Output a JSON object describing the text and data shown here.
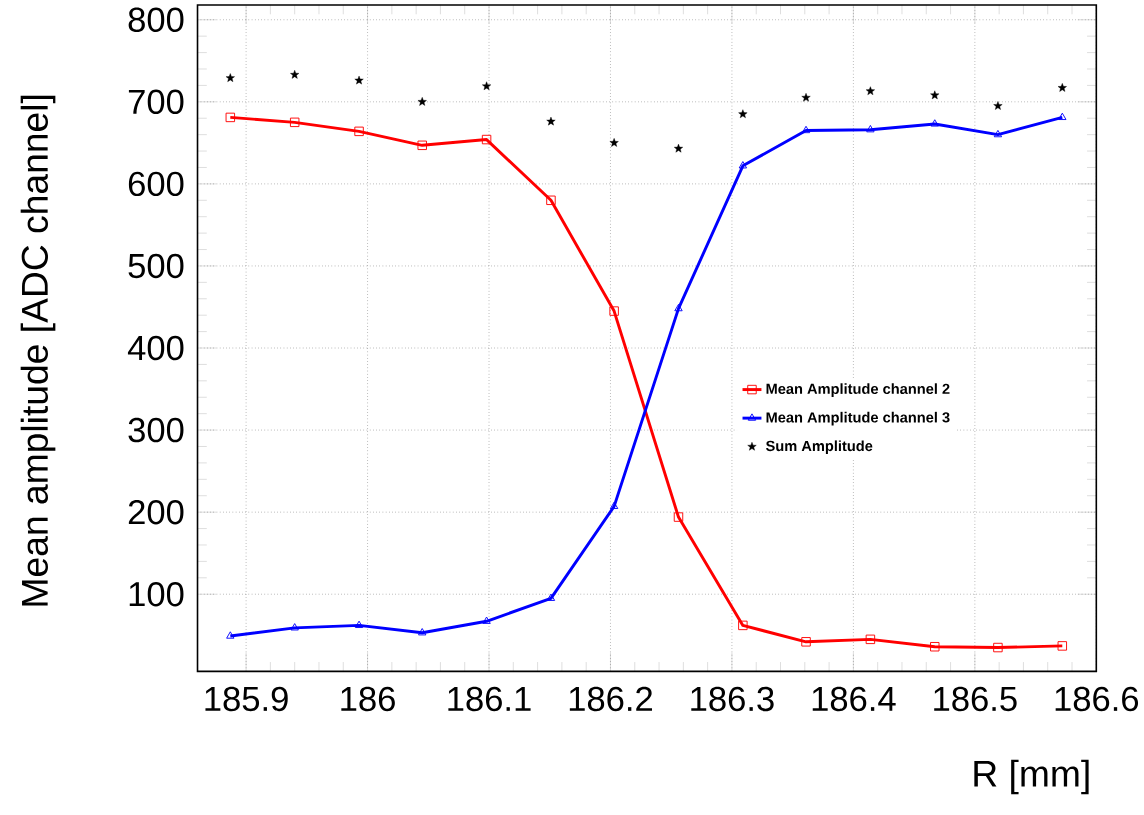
{
  "chart_data": {
    "type": "line",
    "xlabel": "R [mm]",
    "ylabel": "Mean amplitude [ADC channel]",
    "x": [
      185.887,
      185.94,
      185.993,
      186.045,
      186.098,
      186.151,
      186.203,
      186.256,
      186.309,
      186.361,
      186.414,
      186.467,
      186.519,
      186.572
    ],
    "series": [
      {
        "name": "Mean Amplitude channel 2",
        "marker": "square",
        "color": "#ff0000",
        "values": [
          681,
          675,
          664,
          647,
          654,
          580,
          445,
          194,
          62,
          42,
          45,
          36,
          35,
          37
        ]
      },
      {
        "name": "Mean Amplitude channel 3",
        "marker": "triangle",
        "color": "#0000ff",
        "values": [
          49,
          59,
          62,
          53,
          67,
          95,
          207,
          448,
          622,
          665,
          666,
          673,
          660,
          681
        ]
      },
      {
        "name": "Sum Amplitude",
        "type": "scatter",
        "marker": "star",
        "color": "#000000",
        "values": [
          729,
          733,
          726,
          700,
          719,
          676,
          650,
          643,
          685,
          705,
          713,
          708,
          695,
          717
        ]
      }
    ],
    "xlim": [
      185.86,
      186.6
    ],
    "ylim": [
      6,
      818
    ],
    "xticks": [
      185.9,
      186,
      186.1,
      186.2,
      186.3,
      186.4,
      186.5,
      186.6
    ],
    "yticks": [
      100,
      200,
      300,
      400,
      500,
      600,
      700,
      800
    ],
    "grid": true,
    "legend": "right",
    "line_style": "solid"
  }
}
